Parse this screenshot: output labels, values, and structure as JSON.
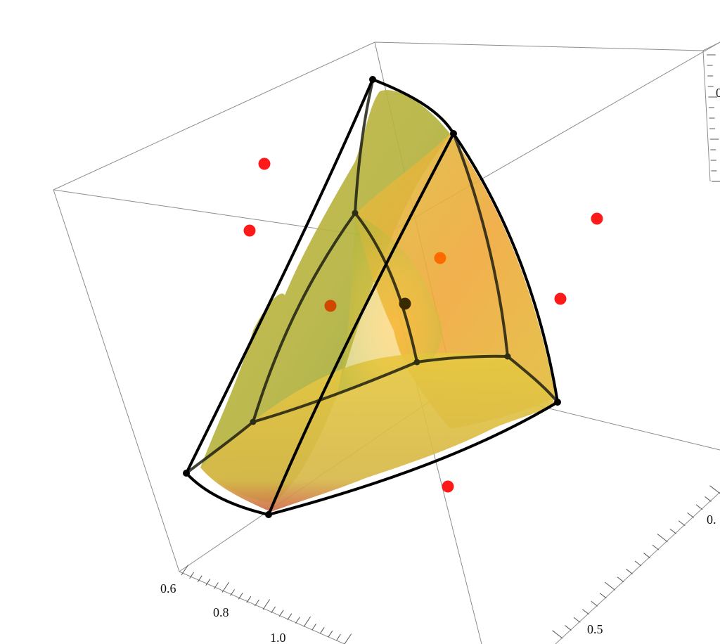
{
  "chart_data": {
    "type": "scatter",
    "title": "",
    "xlabel": "",
    "ylabel": "",
    "zlabel": "",
    "axes": {
      "left_axis_ticks": [
        "0.6",
        "0.8",
        "1.0"
      ],
      "right_axis_ticks": [
        "0.",
        "0.5"
      ],
      "vertical_axis_ticks": [
        "0"
      ]
    },
    "points": [
      {
        "label": "outer-1",
        "color": "#ff1a1a"
      },
      {
        "label": "outer-2",
        "color": "#ff1a1a"
      },
      {
        "label": "outer-3",
        "color": "#ff1a1a"
      },
      {
        "label": "outer-4",
        "color": "#ff1a1a"
      },
      {
        "label": "outer-5",
        "color": "#ff1a1a"
      },
      {
        "label": "inner-1",
        "color": "#ff6a00"
      },
      {
        "label": "inner-2",
        "color": "#d04800"
      },
      {
        "label": "inner-center",
        "color": "#3a2a00"
      }
    ],
    "surface": {
      "kind": "translucent-volume",
      "colors": [
        "#e3c43a",
        "#b8b03a",
        "#f0a030",
        "#9aa83a"
      ]
    },
    "wireframe": {
      "color": "#000000"
    },
    "box": {
      "shown": true,
      "color": "#8c8c8c"
    }
  }
}
